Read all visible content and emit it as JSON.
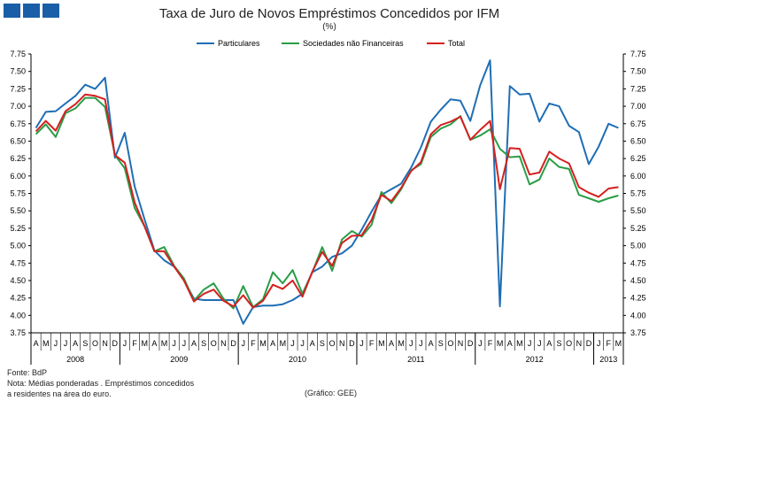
{
  "title": "Taxa de Juro de Novos Empréstimos Concedidos por IFM",
  "subtitle": "(%)",
  "notes": {
    "source": "Fonte: BdP",
    "note_line1": "Nota: Médias ponderadas . Empréstimos concedidos",
    "note_line2": "a residentes na área do euro.",
    "credit": "(Gráfico: GEE)"
  },
  "chart_data": {
    "type": "line",
    "title": "Taxa de Juro de Novos Empréstimos Concedidos por IFM",
    "ylabel": "%",
    "ylim": [
      3.75,
      7.75
    ],
    "yticks": [
      "3.75",
      "4.00",
      "4.25",
      "4.50",
      "4.75",
      "5.00",
      "5.25",
      "5.50",
      "5.75",
      "6.00",
      "6.25",
      "6.50",
      "6.75",
      "7.00",
      "7.25",
      "7.50",
      "7.75"
    ],
    "month_labels": [
      "A",
      "M",
      "J",
      "J",
      "A",
      "S",
      "O",
      "N",
      "D",
      "J",
      "F",
      "M",
      "A",
      "M",
      "J",
      "J",
      "A",
      "S",
      "O",
      "N",
      "D",
      "J",
      "F",
      "M",
      "A",
      "M",
      "J",
      "J",
      "A",
      "S",
      "O",
      "N",
      "D",
      "J",
      "F",
      "M",
      "A",
      "M",
      "J",
      "J",
      "A",
      "S",
      "O",
      "N",
      "D",
      "J",
      "F",
      "M",
      "A",
      "M",
      "J",
      "J",
      "A",
      "S",
      "O",
      "N",
      "D",
      "J",
      "F",
      "M"
    ],
    "years": [
      {
        "label": "2008",
        "start": 0,
        "count": 9
      },
      {
        "label": "2009",
        "start": 9,
        "count": 12
      },
      {
        "label": "2010",
        "start": 21,
        "count": 12
      },
      {
        "label": "2011",
        "start": 33,
        "count": 12
      },
      {
        "label": "2012",
        "start": 45,
        "count": 12
      },
      {
        "label": "2013",
        "start": 57,
        "count": 3
      }
    ],
    "series": [
      {
        "name": "Particulares",
        "color": "#1f6eb4",
        "values": [
          6.69,
          6.92,
          6.93,
          7.04,
          7.15,
          7.31,
          7.25,
          7.41,
          6.26,
          6.62,
          5.85,
          5.38,
          4.93,
          4.79,
          4.7,
          4.5,
          4.24,
          4.22,
          4.22,
          4.22,
          4.22,
          3.88,
          4.12,
          4.14,
          4.14,
          4.16,
          4.22,
          4.31,
          4.62,
          4.7,
          4.84,
          4.89,
          5.0,
          5.23,
          5.49,
          5.73,
          5.81,
          5.89,
          6.12,
          6.41,
          6.78,
          6.95,
          7.1,
          7.08,
          6.79,
          7.3,
          7.66,
          4.13,
          7.29,
          7.17,
          7.18,
          6.78,
          7.04,
          7.0,
          6.72,
          6.63,
          6.17,
          6.42,
          6.75,
          6.69
        ]
      },
      {
        "name": "Sociedades não Financeiras",
        "color": "#2a9d47",
        "values": [
          6.6,
          6.74,
          6.56,
          6.9,
          6.97,
          7.12,
          7.12,
          6.99,
          6.3,
          6.11,
          5.54,
          5.28,
          4.92,
          4.98,
          4.71,
          4.53,
          4.21,
          4.37,
          4.46,
          4.24,
          4.1,
          4.42,
          4.12,
          4.23,
          4.62,
          4.46,
          4.65,
          4.31,
          4.62,
          4.98,
          4.64,
          5.09,
          5.21,
          5.13,
          5.3,
          5.77,
          5.61,
          5.81,
          6.08,
          6.17,
          6.56,
          6.68,
          6.74,
          6.86,
          6.52,
          6.58,
          6.67,
          6.39,
          6.27,
          6.28,
          5.88,
          5.95,
          6.25,
          6.13,
          6.1,
          5.73,
          5.68,
          5.63,
          5.68,
          5.72
        ]
      },
      {
        "name": "Total",
        "color": "#d42020",
        "values": [
          6.64,
          6.79,
          6.65,
          6.93,
          7.03,
          7.17,
          7.15,
          7.1,
          6.3,
          6.19,
          5.62,
          5.28,
          4.92,
          4.92,
          4.7,
          4.5,
          4.2,
          4.31,
          4.37,
          4.21,
          4.13,
          4.29,
          4.11,
          4.21,
          4.44,
          4.38,
          4.5,
          4.27,
          4.63,
          4.91,
          4.71,
          5.04,
          5.14,
          5.15,
          5.37,
          5.73,
          5.64,
          5.83,
          6.07,
          6.2,
          6.6,
          6.73,
          6.78,
          6.85,
          6.52,
          6.66,
          6.79,
          5.81,
          6.4,
          6.39,
          6.02,
          6.05,
          6.35,
          6.25,
          6.18,
          5.84,
          5.76,
          5.7,
          5.82,
          5.84
        ]
      }
    ]
  }
}
